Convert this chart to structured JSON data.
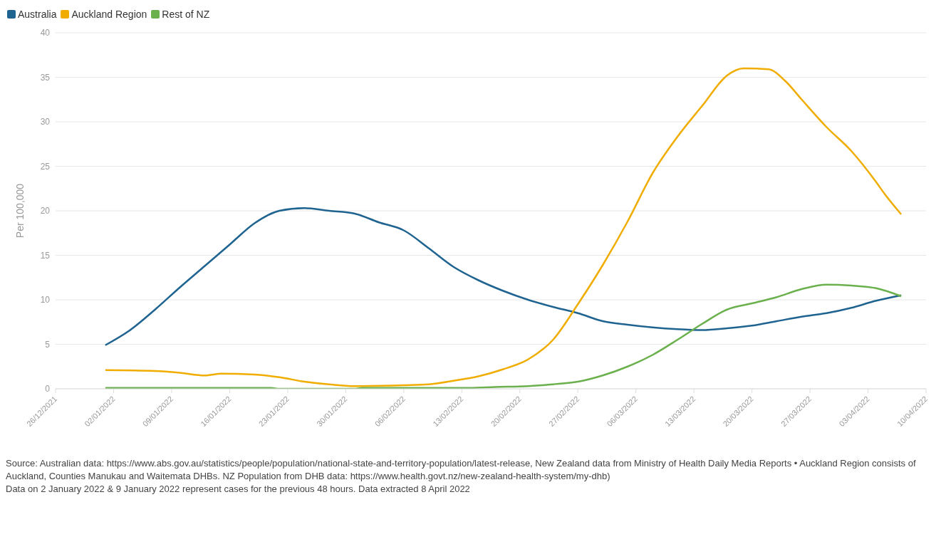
{
  "chart_data": {
    "type": "line",
    "ylabel": "Per 100,000",
    "legend": "top left",
    "grid": "y",
    "marker": "none",
    "line_style": "solid",
    "xlim": [
      "2021-12-26",
      "2022-04-10"
    ],
    "xticks": [
      {
        "value": "2021-12-26",
        "label": "26/12/2021"
      },
      {
        "value": "2022-01-02",
        "label": "02/01/2022"
      },
      {
        "value": "2022-01-09",
        "label": "09/01/2022"
      },
      {
        "value": "2022-01-16",
        "label": "16/01/2022"
      },
      {
        "value": "2022-01-23",
        "label": "23/01/2022"
      },
      {
        "value": "2022-01-30",
        "label": "30/01/2022"
      },
      {
        "value": "2022-02-06",
        "label": "06/02/2022"
      },
      {
        "value": "2022-02-13",
        "label": "13/02/2022"
      },
      {
        "value": "2022-02-20",
        "label": "20/02/2022"
      },
      {
        "value": "2022-02-27",
        "label": "27/02/2022"
      },
      {
        "value": "2022-03-06",
        "label": "06/03/2022"
      },
      {
        "value": "2022-03-13",
        "label": "13/03/2022"
      },
      {
        "value": "2022-03-20",
        "label": "20/03/2022"
      },
      {
        "value": "2022-03-27",
        "label": "27/03/2022"
      },
      {
        "value": "2022-04-03",
        "label": "03/04/2022"
      },
      {
        "value": "2022-04-10",
        "label": "10/04/2022"
      }
    ],
    "ylim": [
      0,
      40
    ],
    "yticks": [
      0,
      5,
      10,
      15,
      20,
      25,
      30,
      35,
      40
    ],
    "series": [
      {
        "name": "Australia",
        "color": "#1f6391",
        "x": [
          "2022-01-01",
          "2022-01-04",
          "2022-01-07",
          "2022-01-10",
          "2022-01-13",
          "2022-01-16",
          "2022-01-19",
          "2022-01-22",
          "2022-01-25",
          "2022-01-28",
          "2022-01-31",
          "2022-02-03",
          "2022-02-06",
          "2022-02-09",
          "2022-02-12",
          "2022-02-15",
          "2022-02-18",
          "2022-02-21",
          "2022-02-24",
          "2022-02-27",
          "2022-03-02",
          "2022-03-05",
          "2022-03-08",
          "2022-03-11",
          "2022-03-14",
          "2022-03-17",
          "2022-03-20",
          "2022-03-23",
          "2022-03-26",
          "2022-03-29",
          "2022-04-01",
          "2022-04-04",
          "2022-04-07"
        ],
        "values": [
          4.9,
          6.6,
          8.9,
          11.4,
          13.8,
          16.2,
          18.6,
          20.0,
          20.3,
          20.0,
          19.7,
          18.7,
          17.8,
          15.8,
          13.7,
          12.2,
          11.0,
          10.0,
          9.2,
          8.5,
          7.6,
          7.2,
          6.9,
          6.7,
          6.6,
          6.8,
          7.1,
          7.6,
          8.1,
          8.5,
          9.1,
          9.9,
          10.5
        ]
      },
      {
        "name": "Auckland Region",
        "color": "#f0ad00",
        "x": [
          "2022-01-01",
          "2022-01-07",
          "2022-01-10",
          "2022-01-13",
          "2022-01-15",
          "2022-01-19",
          "2022-01-22",
          "2022-01-25",
          "2022-01-28",
          "2022-01-31",
          "2022-02-06",
          "2022-02-09",
          "2022-02-12",
          "2022-02-15",
          "2022-02-18",
          "2022-02-21",
          "2022-02-24",
          "2022-02-27",
          "2022-03-02",
          "2022-03-05",
          "2022-03-08",
          "2022-03-11",
          "2022-03-14",
          "2022-03-17",
          "2022-03-19",
          "2022-03-22",
          "2022-03-24",
          "2022-03-26",
          "2022-03-29",
          "2022-04-01",
          "2022-04-04",
          "2022-04-05",
          "2022-04-07"
        ],
        "values": [
          2.1,
          2.0,
          1.8,
          1.5,
          1.7,
          1.6,
          1.3,
          0.8,
          0.5,
          0.3,
          0.4,
          0.5,
          0.9,
          1.4,
          2.2,
          3.3,
          5.5,
          9.5,
          13.9,
          18.8,
          24.2,
          28.3,
          31.8,
          35.2,
          36.0,
          35.9,
          34.6,
          32.5,
          29.4,
          26.7,
          23.2,
          21.9,
          19.6
        ]
      },
      {
        "name": "Rest of NZ",
        "color": "#6ab04c",
        "x": [
          "2022-01-01",
          "2022-01-21",
          "2022-01-22",
          "2022-01-31",
          "2022-02-01",
          "2022-02-14",
          "2022-02-17",
          "2022-02-21",
          "2022-02-24",
          "2022-02-27",
          "2022-03-02",
          "2022-03-05",
          "2022-03-08",
          "2022-03-11",
          "2022-03-14",
          "2022-03-17",
          "2022-03-20",
          "2022-03-23",
          "2022-03-26",
          "2022-03-29",
          "2022-04-01",
          "2022-04-04",
          "2022-04-07"
        ],
        "values": [
          0.1,
          0.1,
          0.0,
          0.0,
          0.1,
          0.1,
          0.2,
          0.3,
          0.5,
          0.8,
          1.5,
          2.5,
          3.8,
          5.5,
          7.3,
          8.9,
          9.6,
          10.3,
          11.2,
          11.7,
          11.6,
          11.3,
          10.4
        ]
      }
    ],
    "annotations": [
      "Source: Australian data: https://www.abs.gov.au/statistics/people/population/national-state-and-territory-population/latest-release, New Zealand data from Ministry of Health Daily Media Reports • Auckland Region consists of Auckland, Counties Manukau and Waitemata DHBs. NZ Population from DHB data: https://www.health.govt.nz/new-zealand-health-system/my-dhb)",
      "Data on 2 January 2022 & 9 January 2022 represent cases for the previous 48 hours. Data extracted 8 April 2022"
    ]
  }
}
